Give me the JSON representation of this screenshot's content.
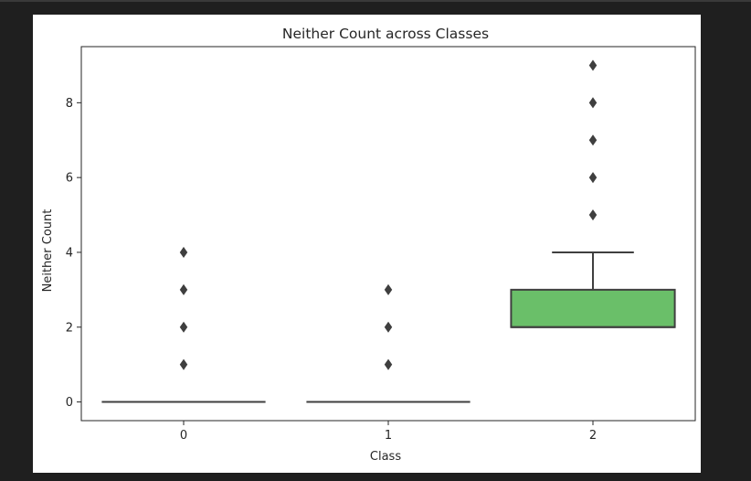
{
  "chart_data": {
    "type": "box",
    "title": "Neither Count across Classes",
    "xlabel": "Class",
    "ylabel": "Neither Count",
    "categories": [
      "0",
      "1",
      "2"
    ],
    "ylim": [
      -0.5,
      9.5
    ],
    "yticks": [
      0,
      2,
      4,
      6,
      8
    ],
    "grid": false,
    "boxes": [
      {
        "category": "0",
        "q1": 0,
        "median": 0,
        "q3": 0,
        "whisker_low": 0,
        "whisker_high": 0,
        "fliers": [
          1,
          2,
          3,
          4
        ],
        "color": "#4c72b0"
      },
      {
        "category": "1",
        "q1": 0,
        "median": 0,
        "q3": 0,
        "whisker_low": 0,
        "whisker_high": 0,
        "fliers": [
          1,
          2,
          3
        ],
        "color": "#dd8452"
      },
      {
        "category": "2",
        "q1": 2,
        "median": 2,
        "q3": 3,
        "whisker_low": 2,
        "whisker_high": 4,
        "fliers": [
          5,
          6,
          7,
          8,
          9
        ],
        "color": "#6abf69"
      }
    ],
    "colors": {
      "line": "#3f3f3f",
      "axis": "#262626"
    }
  }
}
